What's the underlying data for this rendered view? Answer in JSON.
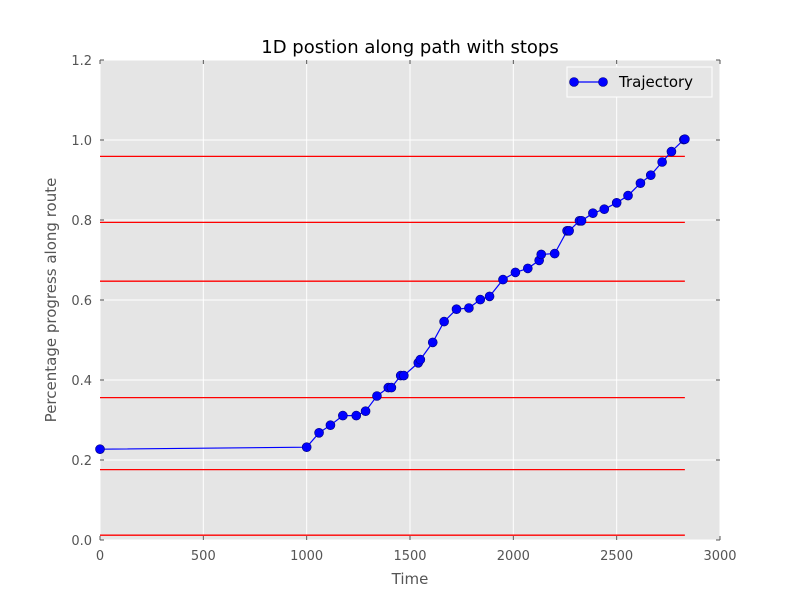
{
  "chart_data": {
    "type": "line",
    "title": "1D postion along path with stops",
    "xlabel": "Time",
    "ylabel": "Percentage progress along route",
    "xlim": [
      0,
      3000
    ],
    "ylim": [
      0.0,
      1.2
    ],
    "xticks": [
      0,
      500,
      1000,
      1500,
      2000,
      2500,
      3000
    ],
    "yticks": [
      0.0,
      0.2,
      0.4,
      0.6,
      0.8,
      1.0,
      1.2
    ],
    "xtick_labels": [
      "0",
      "500",
      "1000",
      "1500",
      "2000",
      "2500",
      "3000"
    ],
    "ytick_labels": [
      "0.0",
      "0.2",
      "0.4",
      "0.6",
      "0.8",
      "1.0",
      "1.2"
    ],
    "grid": true,
    "legend_position": "top-right",
    "series": [
      {
        "name": "Trajectory",
        "color": "#0000ff",
        "marker": "circle",
        "points": [
          [
            0,
            0.227
          ],
          [
            1000,
            0.232
          ],
          [
            1060,
            0.268
          ],
          [
            1115,
            0.287
          ],
          [
            1175,
            0.311
          ],
          [
            1240,
            0.311
          ],
          [
            1285,
            0.322
          ],
          [
            1340,
            0.36
          ],
          [
            1395,
            0.381
          ],
          [
            1410,
            0.381
          ],
          [
            1455,
            0.411
          ],
          [
            1470,
            0.411
          ],
          [
            1540,
            0.443
          ],
          [
            1550,
            0.451
          ],
          [
            1610,
            0.494
          ],
          [
            1665,
            0.546
          ],
          [
            1725,
            0.577
          ],
          [
            1785,
            0.58
          ],
          [
            1840,
            0.601
          ],
          [
            1885,
            0.609
          ],
          [
            1950,
            0.651
          ],
          [
            2010,
            0.669
          ],
          [
            2070,
            0.679
          ],
          [
            2125,
            0.699
          ],
          [
            2135,
            0.714
          ],
          [
            2200,
            0.716
          ],
          [
            2260,
            0.773
          ],
          [
            2270,
            0.773
          ],
          [
            2320,
            0.798
          ],
          [
            2330,
            0.798
          ],
          [
            2385,
            0.817
          ],
          [
            2440,
            0.827
          ],
          [
            2500,
            0.843
          ],
          [
            2555,
            0.861
          ],
          [
            2615,
            0.892
          ],
          [
            2665,
            0.912
          ],
          [
            2720,
            0.945
          ],
          [
            2765,
            0.971
          ],
          [
            2825,
            1.001
          ],
          [
            2830,
            1.002
          ]
        ]
      }
    ],
    "stop_lines": {
      "color": "#ff0000",
      "x_range": [
        0,
        2830
      ],
      "y_values": [
        0.012,
        0.176,
        0.356,
        0.647,
        0.794,
        0.959
      ]
    }
  }
}
